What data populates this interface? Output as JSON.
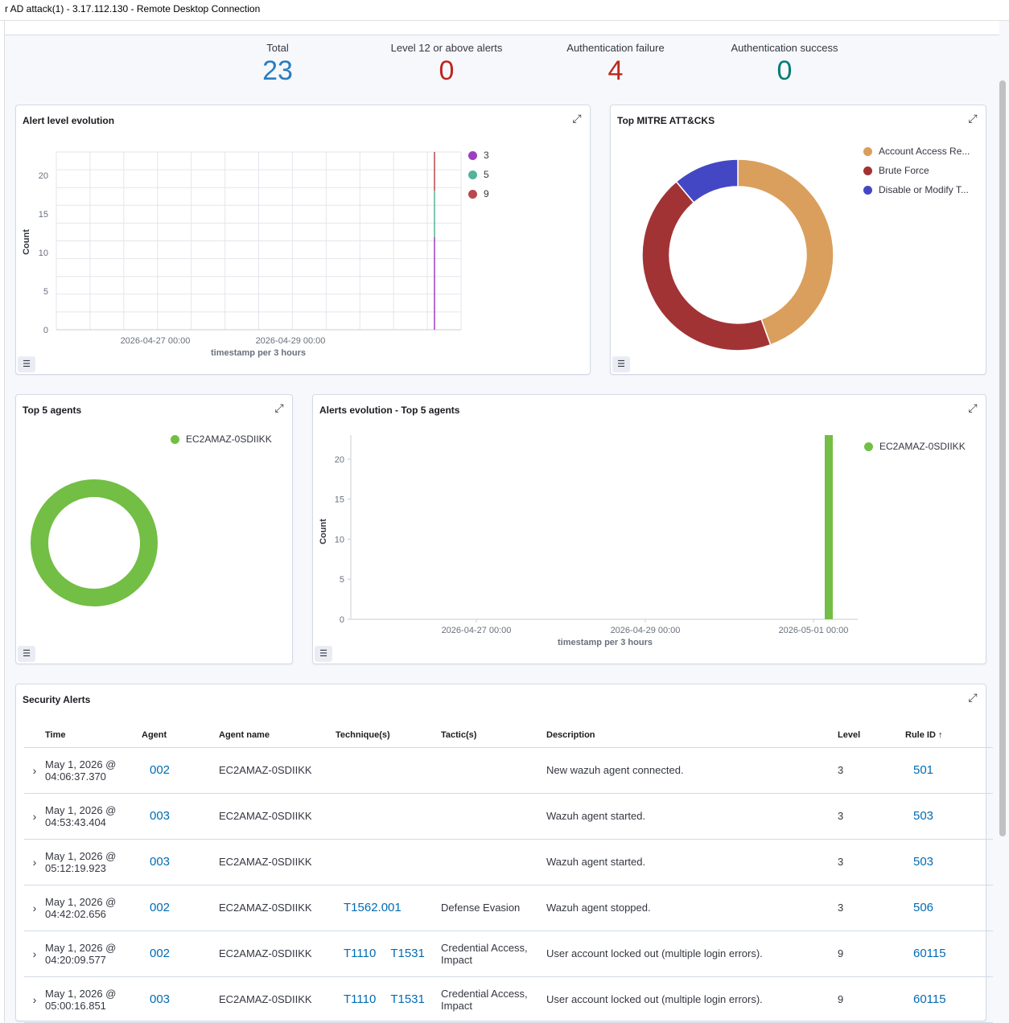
{
  "window": {
    "title": "r AD attack(1) - 3.17.112.130 - Remote Desktop Connection"
  },
  "stats": [
    {
      "label": "Total",
      "value": "23",
      "color": "#2a7dc0"
    },
    {
      "label": "Level 12 or above alerts",
      "value": "0",
      "color": "#bd271e"
    },
    {
      "label": "Authentication failure",
      "value": "4",
      "color": "#bd271e"
    },
    {
      "label": "Authentication success",
      "value": "0",
      "color": "#017d73"
    }
  ],
  "panels": {
    "alert_level": {
      "title": "Alert level evolution"
    },
    "mitre": {
      "title": "Top MITRE ATT&CKS"
    },
    "top_agents": {
      "title": "Top 5 agents"
    },
    "alerts_evolution": {
      "title": "Alerts evolution - Top 5 agents"
    },
    "security_alerts": {
      "title": "Security Alerts"
    }
  },
  "chart_data": [
    {
      "type": "line",
      "title": "Alert level evolution",
      "xlabel": "timestamp per 3 hours",
      "ylabel": "Count",
      "ylim": [
        0,
        23
      ],
      "y_ticks": [
        "0",
        "5",
        "10",
        "15",
        "20"
      ],
      "x_ticks": [
        "2026-04-27 00:00",
        "2026-04-29 00:00"
      ],
      "series": [
        {
          "name": "3",
          "color": "#9c3ebf",
          "x": "2026-05-01 03:00",
          "value": 12
        },
        {
          "name": "5",
          "color": "#54b399",
          "x": "2026-05-01 03:00",
          "value": 6
        },
        {
          "name": "9",
          "color": "#b9484d",
          "x": "2026-05-01 03:00",
          "value": 5
        }
      ],
      "legend": "top-right"
    },
    {
      "type": "pie",
      "title": "Top MITRE ATT&CKS",
      "categories": [
        "Account Access Re...",
        "Brute Force",
        "Disable or Modify T..."
      ],
      "values": [
        4,
        4,
        1
      ],
      "colors": [
        "#da9f5c",
        "#a23335",
        "#4447c4"
      ],
      "legend": "top-right"
    },
    {
      "type": "pie",
      "title": "Top 5 agents",
      "categories": [
        "EC2AMAZ-0SDIIKK"
      ],
      "values": [
        23
      ],
      "colors": [
        "#73be44"
      ],
      "legend": "top-right"
    },
    {
      "type": "bar",
      "title": "Alerts evolution - Top 5 agents",
      "xlabel": "timestamp per 3 hours",
      "ylabel": "Count",
      "ylim": [
        0,
        23
      ],
      "y_ticks": [
        "0",
        "5",
        "10",
        "15",
        "20"
      ],
      "x_ticks": [
        "2026-04-27 00:00",
        "2026-04-29 00:00",
        "2026-05-01 00:00"
      ],
      "series": [
        {
          "name": "EC2AMAZ-0SDIIKK",
          "color": "#73be44",
          "x": "2026-05-01 03:00",
          "value": 23
        }
      ],
      "legend": "top-right"
    }
  ],
  "table": {
    "columns": [
      "Time",
      "Agent",
      "Agent name",
      "Technique(s)",
      "Tactic(s)",
      "Description",
      "Level",
      "Rule ID"
    ],
    "rows": [
      {
        "time1": "May 1, 2026 @",
        "time2": "04:06:37.370",
        "agent": "002",
        "agent_name": "EC2AMAZ-0SDIIKK",
        "techniques": [],
        "tactic1": "",
        "tactic2": "",
        "description": "New wazuh agent connected.",
        "level": "3",
        "rule_id": "501"
      },
      {
        "time1": "May 1, 2026 @",
        "time2": "04:53:43.404",
        "agent": "003",
        "agent_name": "EC2AMAZ-0SDIIKK",
        "techniques": [],
        "tactic1": "",
        "tactic2": "",
        "description": "Wazuh agent started.",
        "level": "3",
        "rule_id": "503"
      },
      {
        "time1": "May 1, 2026 @",
        "time2": "05:12:19.923",
        "agent": "003",
        "agent_name": "EC2AMAZ-0SDIIKK",
        "techniques": [],
        "tactic1": "",
        "tactic2": "",
        "description": "Wazuh agent started.",
        "level": "3",
        "rule_id": "503"
      },
      {
        "time1": "May 1, 2026 @",
        "time2": "04:42:02.656",
        "agent": "002",
        "agent_name": "EC2AMAZ-0SDIIKK",
        "techniques": [
          "T1562.001"
        ],
        "tactic1": "Defense Evasion",
        "tactic2": "",
        "description": "Wazuh agent stopped.",
        "level": "3",
        "rule_id": "506"
      },
      {
        "time1": "May 1, 2026 @",
        "time2": "04:20:09.577",
        "agent": "002",
        "agent_name": "EC2AMAZ-0SDIIKK",
        "techniques": [
          "T1110",
          "T1531"
        ],
        "tactic1": "Credential Access,",
        "tactic2": "Impact",
        "description": "User account locked out (multiple login errors).",
        "level": "9",
        "rule_id": "60115"
      },
      {
        "time1": "May 1, 2026 @",
        "time2": "05:00:16.851",
        "agent": "003",
        "agent_name": "EC2AMAZ-0SDIIKK",
        "techniques": [
          "T1110",
          "T1531"
        ],
        "tactic1": "Credential Access,",
        "tactic2": "Impact",
        "description": "User account locked out (multiple login errors).",
        "level": "9",
        "rule_id": "60115"
      }
    ]
  }
}
